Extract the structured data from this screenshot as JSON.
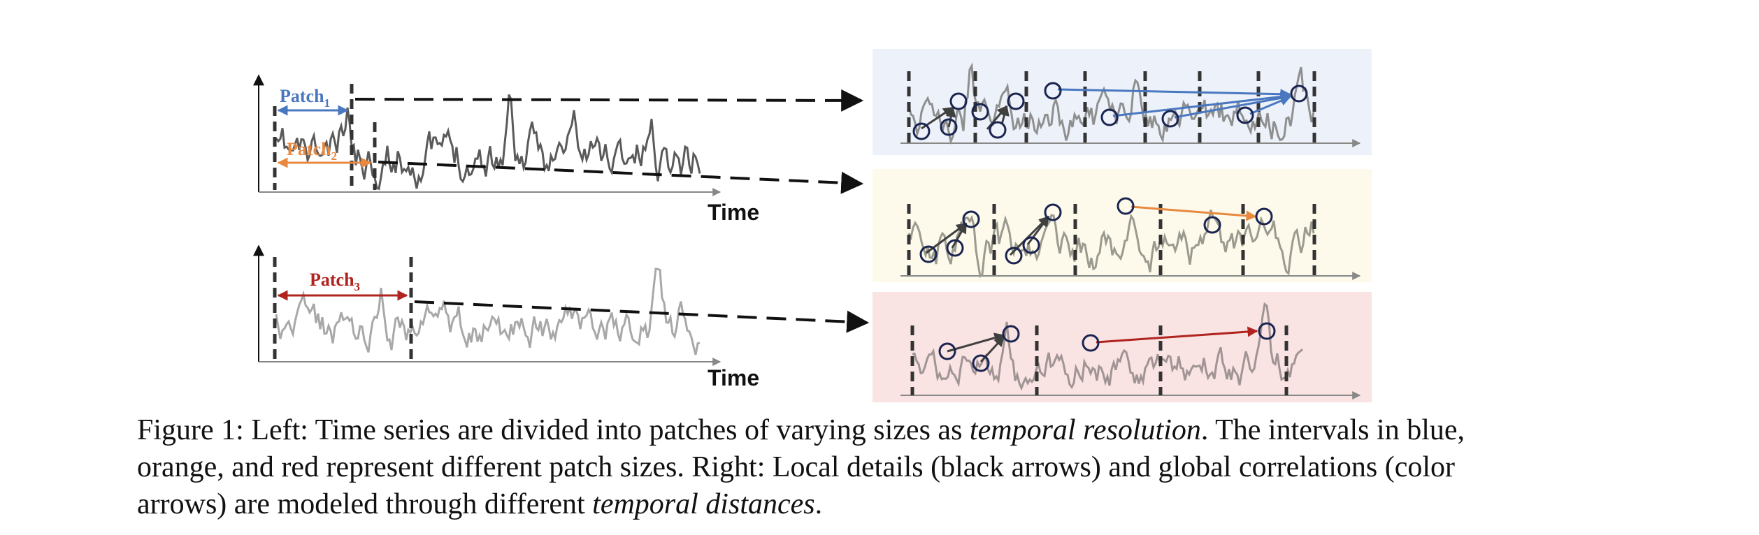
{
  "figure": {
    "left_panels": [
      {
        "patches": [
          {
            "label": "Patch",
            "subscript": "1",
            "color": "#4a78c0"
          },
          {
            "label": "Patch",
            "subscript": "2",
            "color": "#e8893f"
          }
        ],
        "axis_label": "Time"
      },
      {
        "patches": [
          {
            "label": "Patch",
            "subscript": "3",
            "color": "#b0231f"
          }
        ],
        "axis_label": "Time"
      }
    ],
    "right_panels": [
      {
        "background": "#edf2fa",
        "arrow_color": "#4a78c0"
      },
      {
        "background": "#fdf9eb",
        "arrow_color": "#e8893f"
      },
      {
        "background": "#f9e3e3",
        "arrow_color": "#b0231f"
      }
    ],
    "colors": {
      "series_dark": "#5a5a5a",
      "series_light": "#a8a8a8",
      "local_arrow": "#404040",
      "node_stroke": "#1a2450",
      "divider": "#333333"
    }
  },
  "caption": {
    "part1": "Figure 1: Left: Time series are divided into patches of varying sizes as ",
    "em1": "temporal resolution",
    "part2": ". The intervals in blue, orange, and red represent different patch sizes. Right: Local details (black arrows) and global correlations (color arrows) are modeled through different ",
    "em2": "temporal distances",
    "part3": "."
  }
}
